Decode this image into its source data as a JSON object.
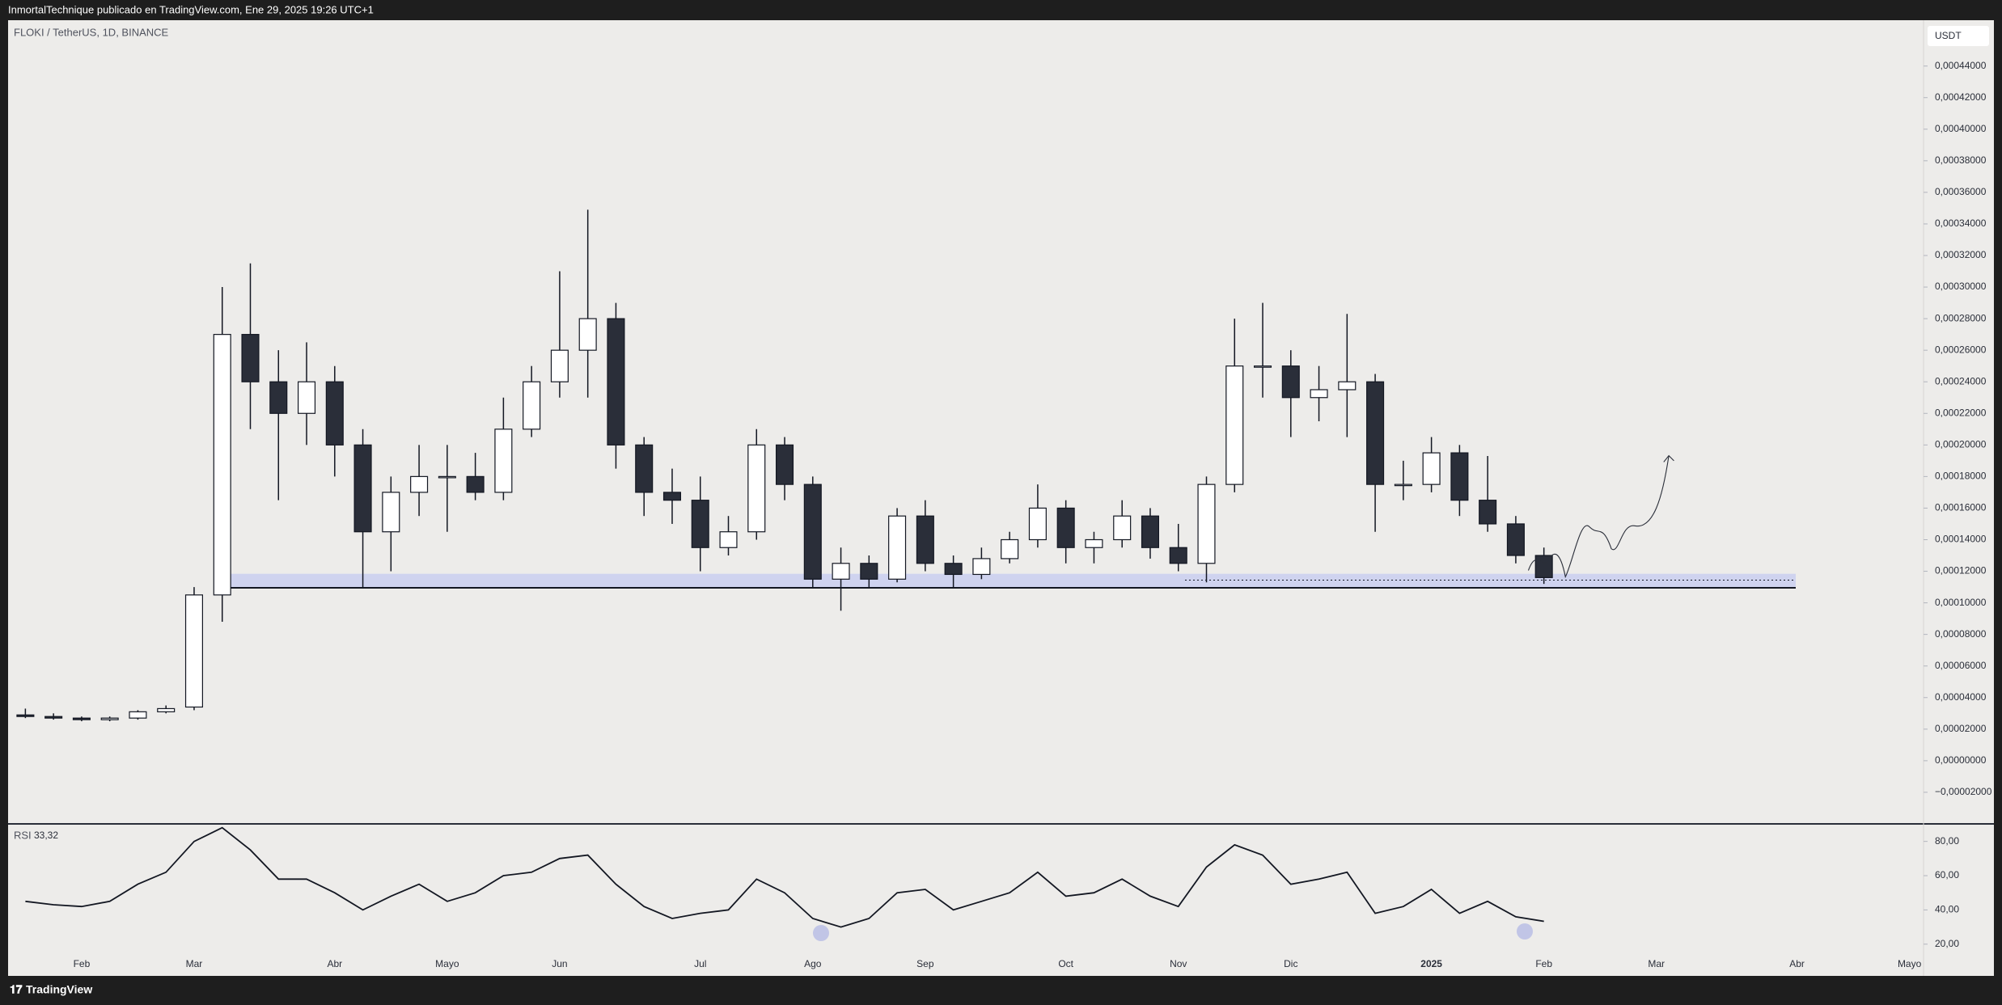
{
  "header": {
    "text": "InmortalTechnique publicado en TradingView.com, Ene 29, 2025 19:26 UTC+1"
  },
  "footer": {
    "brand": "TradingView"
  },
  "chart_data": [
    {
      "type": "candlestick",
      "title": "FLOKI / TetherUS, 1D, BINANCE",
      "currency": "USDT",
      "categories": [
        null,
        null,
        "Feb",
        null,
        null,
        null,
        "Mar",
        null,
        null,
        null,
        null,
        "Abr",
        null,
        null,
        null,
        "Mayo",
        null,
        null,
        null,
        "Jun",
        null,
        null,
        null,
        null,
        "Jul",
        null,
        null,
        null,
        "Ago",
        null,
        null,
        null,
        "Sep",
        null,
        null,
        null,
        null,
        "Oct",
        null,
        null,
        null,
        "Nov",
        null,
        null,
        null,
        "Dic",
        null,
        null,
        null,
        null,
        "2025",
        null,
        null,
        null,
        "Feb",
        null,
        null,
        null,
        "Mar",
        null,
        null,
        null,
        null,
        "Abr",
        null,
        null,
        null,
        "Mayo"
      ],
      "open": [
        2.9e-05,
        2.8e-05,
        2.7e-05,
        2.6e-05,
        2.7e-05,
        3.1e-05,
        3.4e-05,
        0.000105,
        0.00027,
        0.00024,
        0.00022,
        0.00024,
        0.0002,
        0.000145,
        0.00017,
        0.00018,
        0.00018,
        0.00017,
        0.00021,
        0.00024,
        0.00026,
        0.00028,
        0.0002,
        0.00017,
        0.000165,
        0.000135,
        0.000145,
        0.0002,
        0.000175,
        0.000115,
        0.000125,
        0.000115,
        0.000155,
        0.000125,
        0.000118,
        0.000128,
        0.00014,
        0.00016,
        0.000135,
        0.00014,
        0.000155,
        0.000135,
        0.000125,
        0.000175,
        0.00025,
        0.00025,
        0.00023,
        0.000235,
        0.00024,
        0.000175,
        0.000175,
        0.000195,
        0.000165,
        0.00015,
        0.00013,
        null,
        null,
        null,
        null,
        null,
        null,
        null,
        null,
        null,
        null,
        null,
        null,
        null
      ],
      "high": [
        3.3e-05,
        3e-05,
        2.8e-05,
        2.8e-05,
        3.2e-05,
        3.5e-05,
        0.00011,
        0.0003,
        0.000315,
        0.00026,
        0.000265,
        0.00025,
        0.00021,
        0.00018,
        0.0002,
        0.0002,
        0.000195,
        0.00023,
        0.00025,
        0.00031,
        0.000349,
        0.00029,
        0.000205,
        0.000185,
        0.00018,
        0.000155,
        0.00021,
        0.000205,
        0.00018,
        0.000135,
        0.00013,
        0.00016,
        0.000165,
        0.00013,
        0.000135,
        0.000145,
        0.000175,
        0.000165,
        0.000145,
        0.000165,
        0.00016,
        0.00015,
        0.00018,
        0.00028,
        0.00029,
        0.00026,
        0.00025,
        0.000283,
        0.000245,
        0.00019,
        0.000205,
        0.0002,
        0.000193,
        0.000155,
        0.000135,
        null,
        null,
        null,
        null,
        null,
        null,
        null,
        null,
        null,
        null,
        null,
        null,
        null
      ],
      "low": [
        2.7e-05,
        2.6e-05,
        2.5e-05,
        2.5e-05,
        2.6e-05,
        3e-05,
        3.2e-05,
        8.8e-05,
        0.00021,
        0.000165,
        0.0002,
        0.00018,
        0.00011,
        0.00012,
        0.000155,
        0.000145,
        0.000165,
        0.000165,
        0.000205,
        0.00023,
        0.00023,
        0.000185,
        0.000155,
        0.00015,
        0.00012,
        0.00013,
        0.00014,
        0.000165,
        0.00011,
        9.5e-05,
        0.00011,
        0.000113,
        0.00012,
        0.00011,
        0.000115,
        0.000125,
        0.000135,
        0.000125,
        0.000125,
        0.000135,
        0.000128,
        0.00012,
        0.000113,
        0.00017,
        0.00023,
        0.000205,
        0.000215,
        0.000205,
        0.000145,
        0.000165,
        0.00017,
        0.000155,
        0.000145,
        0.000125,
        0.000112,
        null,
        null,
        null,
        null,
        null,
        null,
        null,
        null,
        null,
        null,
        null,
        null,
        null
      ],
      "close": [
        2.8e-05,
        2.7e-05,
        2.6e-05,
        2.7e-05,
        3.1e-05,
        3.3e-05,
        0.000105,
        0.00027,
        0.00024,
        0.00022,
        0.00024,
        0.0002,
        0.000145,
        0.00017,
        0.00018,
        0.00018,
        0.00017,
        0.00021,
        0.00024,
        0.00026,
        0.00028,
        0.0002,
        0.00017,
        0.000165,
        0.000135,
        0.000145,
        0.0002,
        0.000175,
        0.000115,
        0.000125,
        0.000115,
        0.000155,
        0.000125,
        0.000118,
        0.000128,
        0.00014,
        0.00016,
        0.000135,
        0.00014,
        0.000155,
        0.000135,
        0.000125,
        0.000175,
        0.00025,
        0.00025,
        0.00023,
        0.000235,
        0.00024,
        0.000175,
        0.000175,
        0.000195,
        0.000165,
        0.00015,
        0.00013,
        0.000116,
        null,
        null,
        null,
        null,
        null,
        null,
        null,
        null,
        null,
        null,
        null,
        null,
        null
      ],
      "up_color": "#ffffff",
      "down_color": "#2a2e39",
      "outline_color": "#131722",
      "ylim": [
        -3.95e-05,
        0.000468
      ],
      "yticks": [
        {
          "value": -2e-05,
          "label": "−0,00002000"
        },
        {
          "value": 0,
          "label": "0,00000000"
        },
        {
          "value": 2e-05,
          "label": "0,00002000"
        },
        {
          "value": 4e-05,
          "label": "0,00004000"
        },
        {
          "value": 6e-05,
          "label": "0,00006000"
        },
        {
          "value": 8e-05,
          "label": "0,00008000"
        },
        {
          "value": 0.0001,
          "label": "0,00010000"
        },
        {
          "value": 0.00012,
          "label": "0,00012000"
        },
        {
          "value": 0.00014,
          "label": "0,00014000"
        },
        {
          "value": 0.00016,
          "label": "0,00016000"
        },
        {
          "value": 0.00018,
          "label": "0,00018000"
        },
        {
          "value": 0.0002,
          "label": "0,00020000"
        },
        {
          "value": 0.00022,
          "label": "0,00022000"
        },
        {
          "value": 0.00024,
          "label": "0,00024000"
        },
        {
          "value": 0.00026,
          "label": "0,00026000"
        },
        {
          "value": 0.00028,
          "label": "0,00028000"
        },
        {
          "value": 0.0003,
          "label": "0,00030000"
        },
        {
          "value": 0.00032,
          "label": "0,00032000"
        },
        {
          "value": 0.00034,
          "label": "0,00034000"
        },
        {
          "value": 0.00036,
          "label": "0,00036000"
        },
        {
          "value": 0.00038,
          "label": "0,00038000"
        },
        {
          "value": 0.0004,
          "label": "0,00040000"
        },
        {
          "value": 0.00042,
          "label": "0,00042000"
        },
        {
          "value": 0.00044,
          "label": "0,00044000"
        }
      ],
      "grid": false,
      "zone": {
        "low": 0.0001095,
        "high": 0.0001184,
        "color": "#c9cff0"
      },
      "levels": [
        {
          "value": 0.0001095,
          "style": "solid"
        },
        {
          "value": 0.0001144,
          "style": "dotted"
        }
      ]
    },
    {
      "type": "line",
      "title": "RSI",
      "last_value_label": "33,32",
      "color": "#131722",
      "values": [
        45,
        43,
        42,
        45,
        55,
        62,
        80,
        88,
        75,
        58,
        58,
        50,
        40,
        48,
        55,
        45,
        50,
        60,
        62,
        70,
        72,
        55,
        42,
        35,
        38,
        40,
        58,
        50,
        35,
        30,
        35,
        50,
        52,
        40,
        45,
        50,
        62,
        48,
        50,
        58,
        48,
        42,
        65,
        78,
        72,
        55,
        58,
        62,
        38,
        42,
        52,
        38,
        45,
        36,
        33.32,
        null,
        null,
        null,
        null,
        null,
        null,
        null,
        null,
        null,
        null,
        null,
        null,
        null
      ],
      "ylim": [
        9.5,
        89.75
      ],
      "yticks": [
        {
          "value": 20,
          "label": "20,00"
        },
        {
          "value": 40,
          "label": "40,00"
        },
        {
          "value": 60,
          "label": "60,00"
        },
        {
          "value": 80,
          "label": "80,00"
        }
      ]
    }
  ]
}
